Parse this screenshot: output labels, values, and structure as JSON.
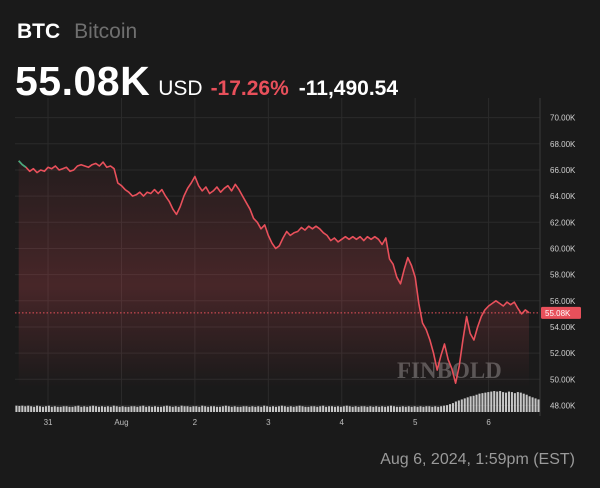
{
  "header": {
    "ticker": "BTC",
    "name": "Bitcoin",
    "price": "55.08K",
    "currency": "USD",
    "change_pct": "-17.26%",
    "change_abs": "-11,490.54"
  },
  "timestamp": "Aug 6, 2024, 1:59pm (EST)",
  "watermark": "FINBOLD",
  "colors": {
    "background": "#1a1a1a",
    "line": "#e8505b",
    "line_start": "#3fae7f",
    "volume": "#d9d9d9",
    "grid": "#2b2b2b",
    "price_tag": "#e8505b"
  },
  "chart_data": {
    "type": "line",
    "y_axis": {
      "side": "right",
      "ylim": [
        47500,
        71500
      ],
      "ticks": [
        48000,
        50000,
        52000,
        54000,
        56000,
        58000,
        60000,
        62000,
        64000,
        66000,
        68000,
        70000
      ],
      "tick_labels": [
        "48.00K",
        "50.00K",
        "52.00K",
        "54.00K",
        "56.00K",
        "58.00K",
        "60.00K",
        "62.00K",
        "64.00K",
        "66.00K",
        "68.00K",
        "70.00K"
      ]
    },
    "x_axis": {
      "xlim": [
        -0.45,
        6.7
      ],
      "ticks": [
        0,
        1,
        2,
        3,
        4,
        5,
        6
      ],
      "tick_labels": [
        "31",
        "Aug",
        "2",
        "3",
        "4",
        "5",
        "6"
      ]
    },
    "current_price_label": "55.08K",
    "current_price": 55080,
    "grid": true,
    "series": [
      {
        "values": [
          [
            -0.4,
            66700
          ],
          [
            -0.35,
            66400
          ],
          [
            -0.3,
            66200
          ],
          [
            -0.25,
            65900
          ],
          [
            -0.2,
            66100
          ],
          [
            -0.15,
            65800
          ],
          [
            -0.1,
            66000
          ],
          [
            -0.05,
            65900
          ],
          [
            0.0,
            66200
          ],
          [
            0.05,
            66100
          ],
          [
            0.1,
            66300
          ],
          [
            0.15,
            66000
          ],
          [
            0.2,
            66100
          ],
          [
            0.25,
            66200
          ],
          [
            0.3,
            65900
          ],
          [
            0.35,
            66000
          ],
          [
            0.4,
            66300
          ],
          [
            0.45,
            66400
          ],
          [
            0.5,
            66300
          ],
          [
            0.55,
            66200
          ],
          [
            0.6,
            66400
          ],
          [
            0.65,
            66500
          ],
          [
            0.7,
            66300
          ],
          [
            0.75,
            66600
          ],
          [
            0.8,
            66200
          ],
          [
            0.85,
            66300
          ],
          [
            0.9,
            66100
          ],
          [
            0.95,
            65000
          ],
          [
            1.0,
            64800
          ],
          [
            1.05,
            64500
          ],
          [
            1.1,
            64300
          ],
          [
            1.15,
            64000
          ],
          [
            1.2,
            64100
          ],
          [
            1.25,
            64300
          ],
          [
            1.3,
            64000
          ],
          [
            1.35,
            64300
          ],
          [
            1.4,
            64200
          ],
          [
            1.45,
            64500
          ],
          [
            1.5,
            64200
          ],
          [
            1.55,
            64500
          ],
          [
            1.6,
            64000
          ],
          [
            1.65,
            63600
          ],
          [
            1.7,
            63000
          ],
          [
            1.75,
            62600
          ],
          [
            1.8,
            63200
          ],
          [
            1.85,
            64000
          ],
          [
            1.9,
            64600
          ],
          [
            1.95,
            65000
          ],
          [
            2.0,
            65500
          ],
          [
            2.05,
            64800
          ],
          [
            2.1,
            64400
          ],
          [
            2.15,
            64700
          ],
          [
            2.2,
            64200
          ],
          [
            2.25,
            64400
          ],
          [
            2.3,
            64700
          ],
          [
            2.35,
            64300
          ],
          [
            2.4,
            64600
          ],
          [
            2.45,
            64800
          ],
          [
            2.5,
            64400
          ],
          [
            2.55,
            64900
          ],
          [
            2.6,
            64500
          ],
          [
            2.65,
            64000
          ],
          [
            2.7,
            63500
          ],
          [
            2.75,
            63000
          ],
          [
            2.8,
            62300
          ],
          [
            2.85,
            62000
          ],
          [
            2.9,
            61500
          ],
          [
            2.95,
            61800
          ],
          [
            3.0,
            61000
          ],
          [
            3.05,
            60400
          ],
          [
            3.1,
            60000
          ],
          [
            3.15,
            60200
          ],
          [
            3.2,
            60800
          ],
          [
            3.25,
            61300
          ],
          [
            3.3,
            61000
          ],
          [
            3.35,
            61200
          ],
          [
            3.4,
            61300
          ],
          [
            3.45,
            61600
          ],
          [
            3.5,
            61400
          ],
          [
            3.55,
            61700
          ],
          [
            3.6,
            61500
          ],
          [
            3.65,
            61700
          ],
          [
            3.7,
            61500
          ],
          [
            3.75,
            61200
          ],
          [
            3.8,
            61000
          ],
          [
            3.85,
            60600
          ],
          [
            3.9,
            60800
          ],
          [
            3.95,
            60500
          ],
          [
            4.0,
            60700
          ],
          [
            4.05,
            60900
          ],
          [
            4.1,
            60700
          ],
          [
            4.15,
            60900
          ],
          [
            4.2,
            60700
          ],
          [
            4.25,
            60900
          ],
          [
            4.3,
            60600
          ],
          [
            4.35,
            60900
          ],
          [
            4.4,
            60700
          ],
          [
            4.45,
            60900
          ],
          [
            4.5,
            60700
          ],
          [
            4.55,
            60300
          ],
          [
            4.6,
            60800
          ],
          [
            4.65,
            59200
          ],
          [
            4.7,
            58800
          ],
          [
            4.75,
            57800
          ],
          [
            4.8,
            57300
          ],
          [
            4.85,
            58400
          ],
          [
            4.9,
            59300
          ],
          [
            4.95,
            58700
          ],
          [
            5.0,
            57800
          ],
          [
            5.05,
            55800
          ],
          [
            5.1,
            54300
          ],
          [
            5.15,
            53800
          ],
          [
            5.2,
            53000
          ],
          [
            5.25,
            52000
          ],
          [
            5.3,
            50700
          ],
          [
            5.35,
            51800
          ],
          [
            5.4,
            52700
          ],
          [
            5.45,
            51500
          ],
          [
            5.5,
            50800
          ],
          [
            5.55,
            49700
          ],
          [
            5.6,
            51000
          ],
          [
            5.65,
            53000
          ],
          [
            5.7,
            54800
          ],
          [
            5.75,
            53500
          ],
          [
            5.8,
            53000
          ],
          [
            5.85,
            54000
          ],
          [
            5.9,
            54800
          ],
          [
            5.95,
            55300
          ],
          [
            6.0,
            55600
          ],
          [
            6.05,
            55800
          ],
          [
            6.1,
            56000
          ],
          [
            6.15,
            55800
          ],
          [
            6.2,
            55600
          ],
          [
            6.25,
            55900
          ],
          [
            6.3,
            55700
          ],
          [
            6.35,
            55900
          ],
          [
            6.4,
            55400
          ],
          [
            6.45,
            55000
          ],
          [
            6.5,
            55300
          ],
          [
            6.55,
            55080
          ]
        ]
      }
    ],
    "volume": [
      1.2,
      1.15,
      1.2,
      1.1,
      1.2,
      1.1,
      1.0,
      1.2,
      1.1,
      1.0,
      1.1,
      1.2,
      1.0,
      1.1,
      1.0,
      1.0,
      1.1,
      1.1,
      1.0,
      1.0,
      1.1,
      1.2,
      1.0,
      1.1,
      1.0,
      1.1,
      1.2,
      1.1,
      1.0,
      1.1,
      1.0,
      1.1,
      1.0,
      1.2,
      1.1,
      1.0,
      1.1,
      1.0,
      1.0,
      1.1,
      1.1,
      1.0,
      1.1,
      1.2,
      1.0,
      1.1,
      1.0,
      1.1,
      1.0,
      1.0,
      1.1,
      1.2,
      1.1,
      1.0,
      1.1,
      1.0,
      1.2,
      1.1,
      1.1,
      1.0,
      1.1,
      1.1,
      1.0,
      1.2,
      1.1,
      1.0,
      1.1,
      1.1,
      1.0,
      1.0,
      1.1,
      1.2,
      1.1,
      1.0,
      1.1,
      1.0,
      1.0,
      1.1,
      1.1,
      1.0,
      1.1,
      1.0,
      1.1,
      1.0,
      1.2,
      1.1,
      1.0,
      1.1,
      1.0,
      1.1,
      1.2,
      1.1,
      1.0,
      1.1,
      1.0,
      1.1,
      1.2,
      1.1,
      1.0,
      1.0,
      1.1,
      1.1,
      1.0,
      1.1,
      1.2,
      1.0,
      1.1,
      1.1,
      1.0,
      1.1,
      1.0,
      1.1,
      1.2,
      1.1,
      1.0,
      1.1,
      1.0,
      1.1,
      1.1,
      1.0,
      1.1,
      1.0,
      1.1,
      1.0,
      1.1,
      1.0,
      1.1,
      1.2,
      1.1,
      1.0,
      1.0,
      1.1,
      1.0,
      1.1,
      1.0,
      1.1,
      1.0,
      1.1,
      1.0,
      1.1,
      1.1,
      1.0,
      1.1,
      1.0,
      1.1,
      1.2,
      1.3,
      1.5,
      1.7,
      2.0,
      2.2,
      2.4,
      2.6,
      2.8,
      3.0,
      3.1,
      3.3,
      3.5,
      3.6,
      3.7,
      3.8,
      3.9,
      4.0,
      3.9,
      4.0,
      3.8,
      3.7,
      3.9,
      3.8,
      3.6,
      3.8,
      3.7,
      3.5,
      3.3,
      3.0,
      2.8,
      2.6,
      2.4
    ]
  }
}
